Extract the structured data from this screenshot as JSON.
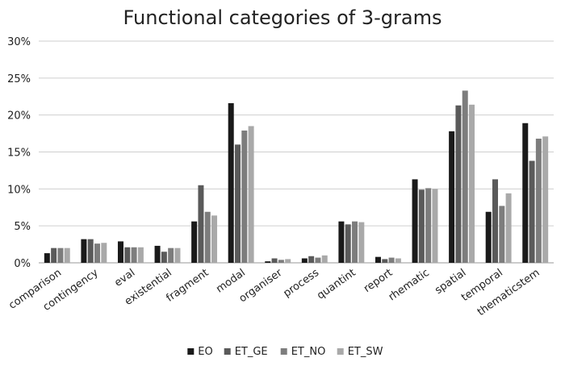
{
  "chart_data": {
    "type": "bar",
    "title": "Functional categories of 3-grams",
    "xlabel": "",
    "ylabel": "",
    "ylim": [
      0,
      30
    ],
    "yticks": [
      "0%",
      "5%",
      "10%",
      "15%",
      "20%",
      "25%",
      "30%"
    ],
    "grid": true,
    "legend_position": "bottom",
    "categories": [
      "comparison",
      "contingency",
      "eval",
      "existential",
      "fragment",
      "modal",
      "organiser",
      "process",
      "quantint",
      "report",
      "rhematic",
      "spatial",
      "temporal",
      "thematicstem"
    ],
    "series": [
      {
        "name": "EO",
        "color": "#1a1a1a",
        "values": [
          1.3,
          3.2,
          2.9,
          2.3,
          5.6,
          21.6,
          0.2,
          0.6,
          5.6,
          0.8,
          11.3,
          17.8,
          6.9,
          18.9
        ]
      },
      {
        "name": "ET_GE",
        "color": "#5a5a5a",
        "values": [
          2.0,
          3.2,
          2.1,
          1.5,
          10.5,
          16.0,
          0.6,
          0.9,
          5.2,
          0.5,
          9.9,
          21.3,
          11.3,
          13.8
        ]
      },
      {
        "name": "ET_NO",
        "color": "#7d7d7d",
        "values": [
          2.0,
          2.6,
          2.1,
          2.0,
          6.9,
          17.9,
          0.4,
          0.7,
          5.6,
          0.7,
          10.1,
          23.3,
          7.7,
          16.8
        ]
      },
      {
        "name": "ET_SW",
        "color": "#a9a9a9",
        "values": [
          2.0,
          2.7,
          2.1,
          2.0,
          6.4,
          18.5,
          0.5,
          1.0,
          5.5,
          0.6,
          10.0,
          21.4,
          9.4,
          17.1
        ]
      }
    ]
  }
}
